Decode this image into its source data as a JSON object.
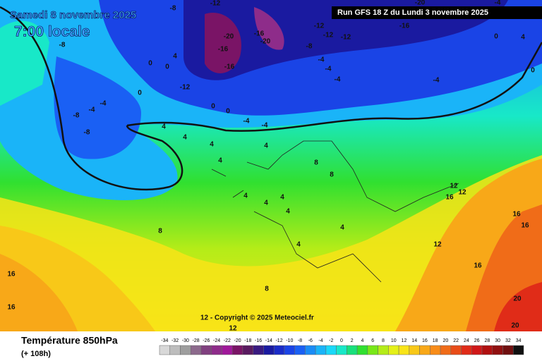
{
  "header": {
    "date": "Samedi 8 novembre 2025",
    "time": "7:00 locale",
    "run": "Run GFS 18 Z du Lundi 3 novembre 2025"
  },
  "map": {
    "copyright": "12 - Copyright © 2025 Meteociel.fr",
    "contour_labels": [
      -12,
      -8,
      -20,
      -16,
      -12,
      -12,
      -12,
      -16,
      -20,
      -20,
      -16,
      -16,
      -8,
      -4,
      -4,
      -4,
      -12,
      -8,
      -4,
      -8,
      -8,
      -4,
      0,
      0,
      4,
      0,
      0,
      0,
      -4,
      -4,
      4,
      4,
      4,
      4,
      4,
      8,
      8,
      4,
      4,
      4,
      4,
      4,
      4,
      8,
      8,
      12,
      12,
      16,
      16,
      16,
      12,
      16,
      16,
      16,
      20,
      20,
      12,
      -4,
      4,
      0,
      -4,
      -12,
      0
    ]
  },
  "legend": {
    "title": "Température 850hPa",
    "subtitle": "(+ 108h)",
    "values": [
      -34,
      -32,
      -30,
      -28,
      -26,
      -24,
      -22,
      -20,
      -18,
      -16,
      -14,
      -12,
      -10,
      -8,
      -6,
      -4,
      -2,
      0,
      2,
      4,
      6,
      8,
      10,
      12,
      14,
      16,
      18,
      20,
      22,
      24,
      26,
      28,
      30,
      32,
      34
    ],
    "colors": [
      "#d8d8d8",
      "#bdbdbd",
      "#9e9e9e",
      "#8c6a8c",
      "#80407f",
      "#8e2c8a",
      "#a0189a",
      "#7a1466",
      "#5a1a60",
      "#3a1a80",
      "#1a1aa0",
      "#1a2cc8",
      "#1a44e6",
      "#1a60f4",
      "#1a8cf6",
      "#1ab4f8",
      "#1ad8f8",
      "#18e8c8",
      "#18e07c",
      "#30e030",
      "#78e818",
      "#b4ec18",
      "#e4f018",
      "#f8e418",
      "#f8c818",
      "#f8a818",
      "#f88c18",
      "#f06c18",
      "#e84c18",
      "#e02c18",
      "#d01818",
      "#b01010",
      "#901010",
      "#701010",
      "#101010"
    ]
  }
}
